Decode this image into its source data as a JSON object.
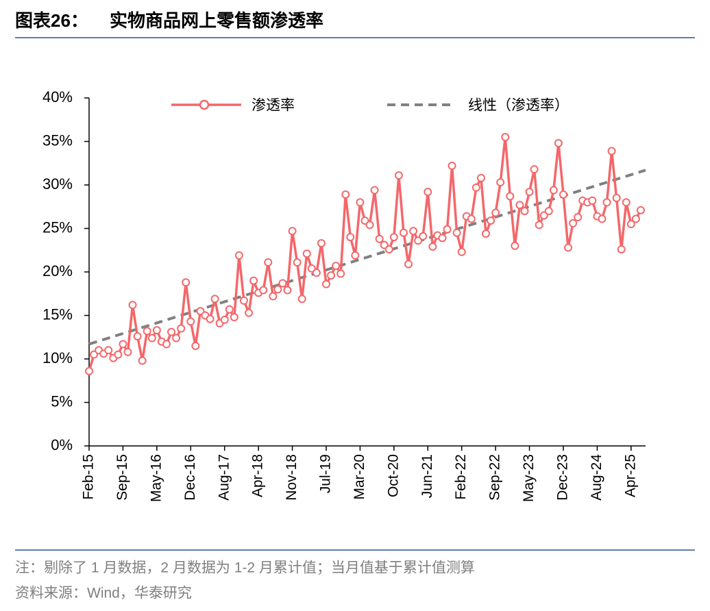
{
  "title_prefix": "图表26：",
  "title": "实物商品网上零售额渗透率",
  "note": "注：剔除了 1 月数据，2 月数据为 1-2 月累计值；当月值基于累计值测算",
  "source": "资料来源：Wind，华泰研究",
  "chart_data": {
    "type": "line",
    "categories": [
      "Feb-15",
      null,
      null,
      null,
      null,
      null,
      null,
      "Sep-15",
      null,
      null,
      null,
      null,
      null,
      null,
      "May-16",
      null,
      null,
      null,
      null,
      null,
      null,
      "Dec-16",
      null,
      null,
      null,
      null,
      null,
      null,
      "Aug-17",
      null,
      null,
      null,
      null,
      null,
      null,
      "Apr-18",
      null,
      null,
      null,
      null,
      null,
      null,
      "Nov-18",
      null,
      null,
      null,
      null,
      null,
      null,
      "Jul-19",
      null,
      null,
      null,
      null,
      null,
      null,
      "Mar-20",
      null,
      null,
      null,
      null,
      null,
      null,
      "Oct-20",
      null,
      null,
      null,
      null,
      null,
      null,
      "Jun-21",
      null,
      null,
      null,
      null,
      null,
      null,
      "Feb-22",
      null,
      null,
      null,
      null,
      null,
      null,
      "Sep-22",
      null,
      null,
      null,
      null,
      null,
      null,
      "May-23",
      null,
      null,
      null,
      null,
      null,
      null,
      "Dec-23",
      null,
      null,
      null,
      null,
      null,
      null,
      "Aug-24",
      null,
      null,
      null,
      null,
      null,
      null,
      "Apr-25",
      null,
      null
    ],
    "series": [
      {
        "name": "渗透率",
        "color": "#f4676a",
        "values": [
          8.6,
          10.5,
          11.0,
          10.6,
          11.0,
          10.1,
          10.5,
          11.7,
          10.8,
          16.2,
          12.6,
          9.8,
          13.2,
          12.4,
          13.3,
          12.0,
          11.7,
          13.1,
          12.4,
          13.5,
          18.8,
          14.3,
          11.5,
          15.5,
          15.0,
          14.6,
          16.9,
          14.1,
          14.5,
          15.7,
          14.8,
          21.9,
          16.7,
          15.3,
          19.0,
          17.6,
          17.9,
          21.1,
          17.2,
          18.0,
          18.7,
          17.9,
          24.7,
          21.1,
          16.9,
          22.1,
          20.4,
          19.9,
          23.3,
          18.6,
          19.6,
          20.7,
          19.8,
          28.9,
          24.0,
          21.9,
          28.0,
          25.9,
          25.4,
          29.4,
          23.8,
          23.1,
          22.6,
          24.0,
          31.1,
          24.5,
          20.9,
          24.7,
          23.6,
          24.1,
          29.2,
          22.9,
          24.2,
          23.9,
          24.9,
          32.2,
          24.5,
          22.3,
          26.4,
          26.1,
          29.7,
          30.8,
          24.4,
          25.9,
          26.8,
          30.3,
          35.5,
          28.7,
          23.0,
          27.7,
          27.0,
          29.2,
          31.8,
          25.4,
          26.5,
          27.0,
          29.4,
          34.8,
          28.9,
          22.8,
          25.6,
          26.3,
          28.2,
          28.0,
          28.2,
          26.4,
          26.1,
          28.0,
          33.9,
          28.5,
          22.6,
          28.0,
          25.5,
          26.1,
          27.1
        ]
      }
    ],
    "trendline": {
      "name": "线性（渗透率）",
      "color": "#808080"
    },
    "ylim": [
      0,
      40
    ],
    "yticks": [
      {
        "value": 0,
        "label": "0%"
      },
      {
        "value": 5,
        "label": "5%"
      },
      {
        "value": 10,
        "label": "10%"
      },
      {
        "value": 15,
        "label": "15%"
      },
      {
        "value": 20,
        "label": "20%"
      },
      {
        "value": 25,
        "label": "25%"
      },
      {
        "value": 30,
        "label": "30%"
      },
      {
        "value": 35,
        "label": "35%"
      },
      {
        "value": 40,
        "label": "40%"
      }
    ],
    "grid": false,
    "legend": "top"
  }
}
